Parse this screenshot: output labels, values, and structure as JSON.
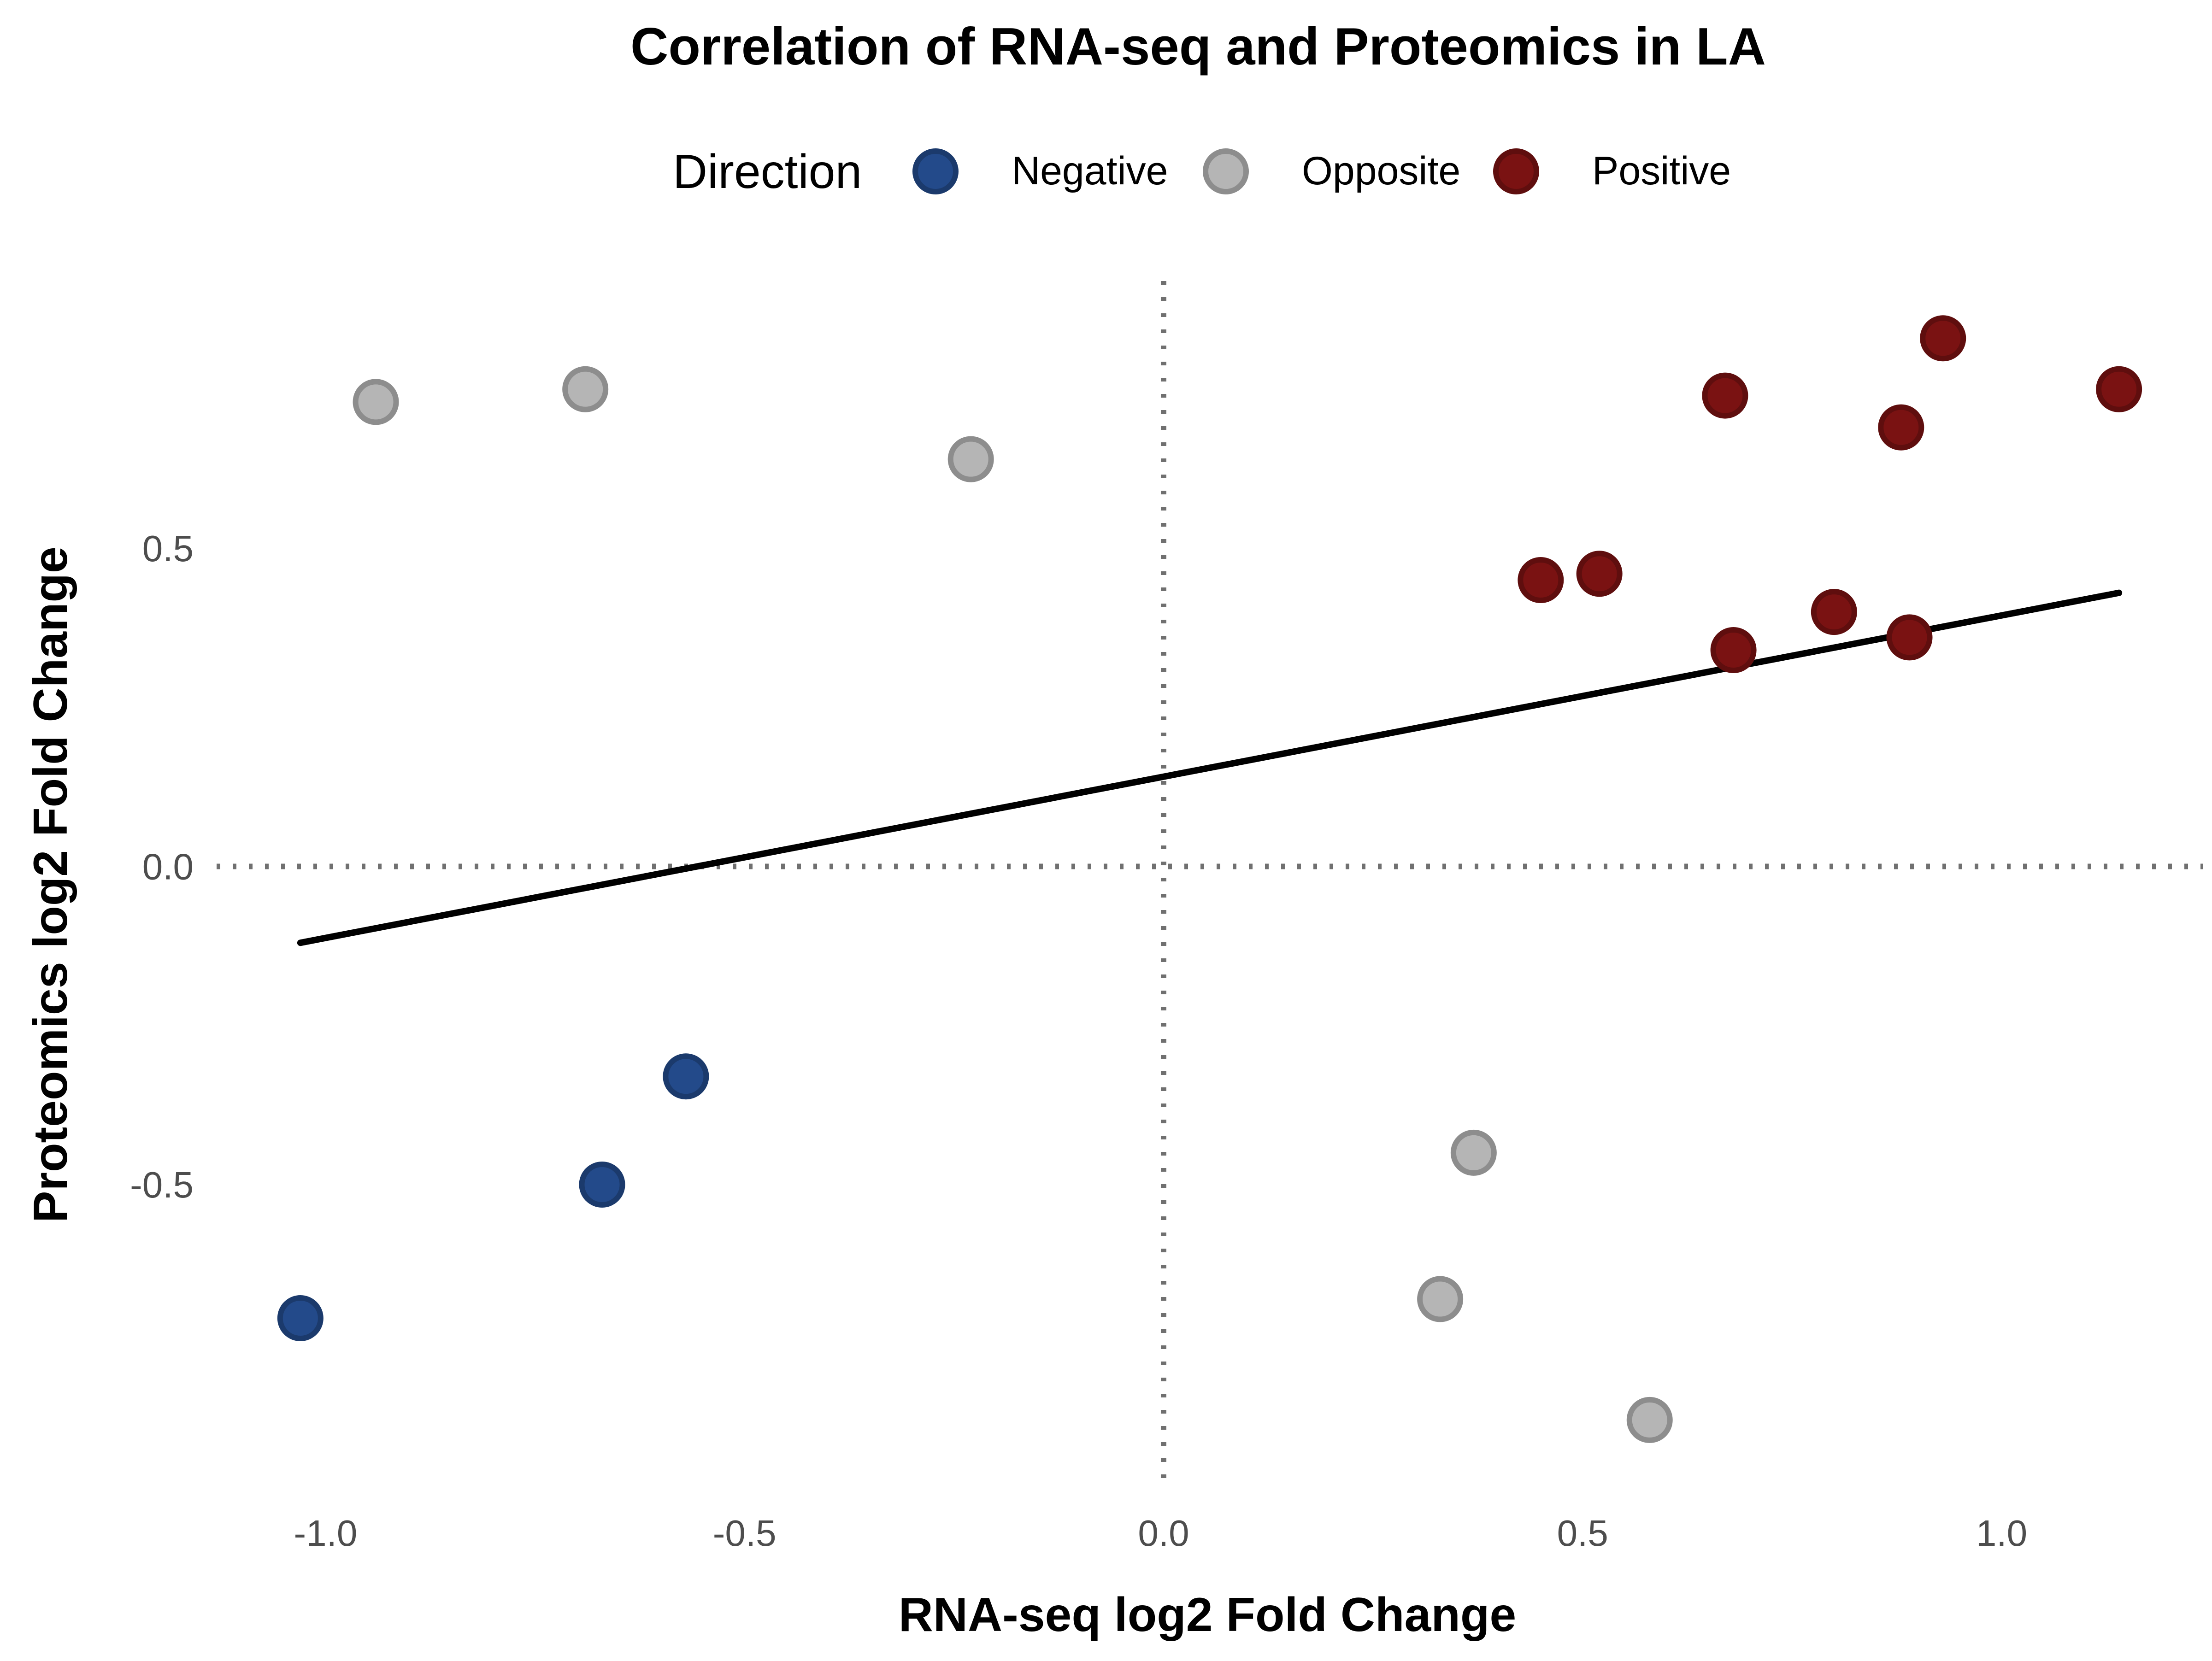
{
  "chart_data": {
    "type": "scatter",
    "title": "Correlation of RNA-seq and Proteomics in LA",
    "xlabel": "RNA-seq log2 Fold Change",
    "ylabel": "Proteomics log2 Fold Change",
    "xlim": [
      -1.13,
      1.24
    ],
    "ylim": [
      -0.97,
      0.92
    ],
    "x_ticks": [
      -1.0,
      -0.5,
      0.0,
      0.5,
      1.0
    ],
    "x_tick_labels": [
      "-1.0",
      "-0.5",
      "0.0",
      "0.5",
      "1.0"
    ],
    "y_ticks": [
      -0.5,
      0.0,
      0.5
    ],
    "y_tick_labels": [
      "-0.5",
      "0.0",
      "0.5"
    ],
    "grid": false,
    "reference_lines": {
      "x": 0,
      "y": 0,
      "style": "dotted"
    },
    "legend": {
      "title": "Direction",
      "position": "top",
      "entries": [
        {
          "label": "Negative",
          "color": "#234a8a"
        },
        {
          "label": "Opposite",
          "color": "#b5b5b5"
        },
        {
          "label": "Positive",
          "color": "#7a1212"
        }
      ]
    },
    "series": [
      {
        "name": "Negative",
        "color": "#234a8a",
        "points": [
          {
            "x": -1.03,
            "y": -0.71
          },
          {
            "x": -0.67,
            "y": -0.5
          },
          {
            "x": -0.57,
            "y": -0.33
          }
        ]
      },
      {
        "name": "Opposite",
        "color": "#b5b5b5",
        "points": [
          {
            "x": -0.94,
            "y": 0.73
          },
          {
            "x": -0.69,
            "y": 0.75
          },
          {
            "x": -0.23,
            "y": 0.64
          },
          {
            "x": 0.37,
            "y": -0.45
          },
          {
            "x": 0.33,
            "y": -0.68
          },
          {
            "x": 0.58,
            "y": -0.87
          }
        ]
      },
      {
        "name": "Positive",
        "color": "#7a1212",
        "points": [
          {
            "x": 0.45,
            "y": 0.45
          },
          {
            "x": 0.52,
            "y": 0.46
          },
          {
            "x": 0.67,
            "y": 0.74
          },
          {
            "x": 0.68,
            "y": 0.34
          },
          {
            "x": 0.8,
            "y": 0.4
          },
          {
            "x": 0.88,
            "y": 0.69
          },
          {
            "x": 0.89,
            "y": 0.36
          },
          {
            "x": 0.93,
            "y": 0.83
          },
          {
            "x": 1.14,
            "y": 0.75
          }
        ]
      }
    ],
    "trend_line": {
      "type": "linear",
      "color": "#000000",
      "x": [
        -1.03,
        1.14
      ],
      "y": [
        -0.12,
        0.43
      ]
    }
  }
}
